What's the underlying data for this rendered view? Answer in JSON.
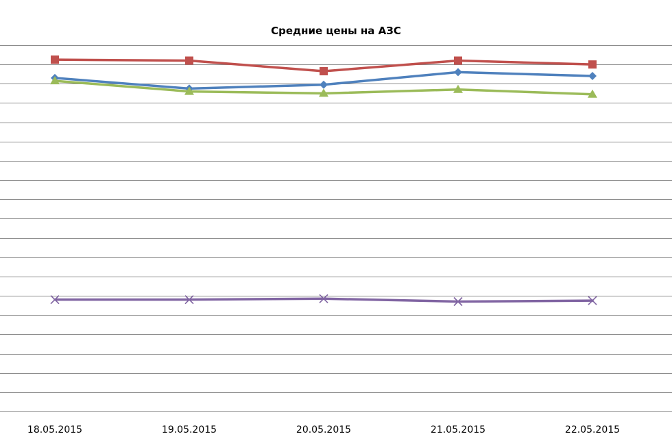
{
  "chart_data": {
    "type": "line",
    "title": "Средние цены на АЗС",
    "xlabel": "",
    "ylabel": "",
    "categories": [
      "18.05.2015",
      "19.05.2015",
      "20.05.2015",
      "21.05.2015",
      "22.05.2015"
    ],
    "ylim": [
      0,
      19
    ],
    "ytick_step": 1,
    "grid": true,
    "legend": "none",
    "series": [
      {
        "color": "#c0504d",
        "marker": "square",
        "values": [
          18.25,
          18.2,
          17.65,
          18.2,
          18.0
        ]
      },
      {
        "color": "#4f81bd",
        "marker": "diamond",
        "values": [
          17.3,
          16.75,
          16.95,
          17.6,
          17.4
        ]
      },
      {
        "color": "#9bbb59",
        "marker": "triangle",
        "values": [
          17.15,
          16.6,
          16.5,
          16.7,
          16.45
        ]
      },
      {
        "color": "#8064a2",
        "marker": "x",
        "values": [
          5.8,
          5.8,
          5.85,
          5.7,
          5.75
        ]
      }
    ]
  }
}
